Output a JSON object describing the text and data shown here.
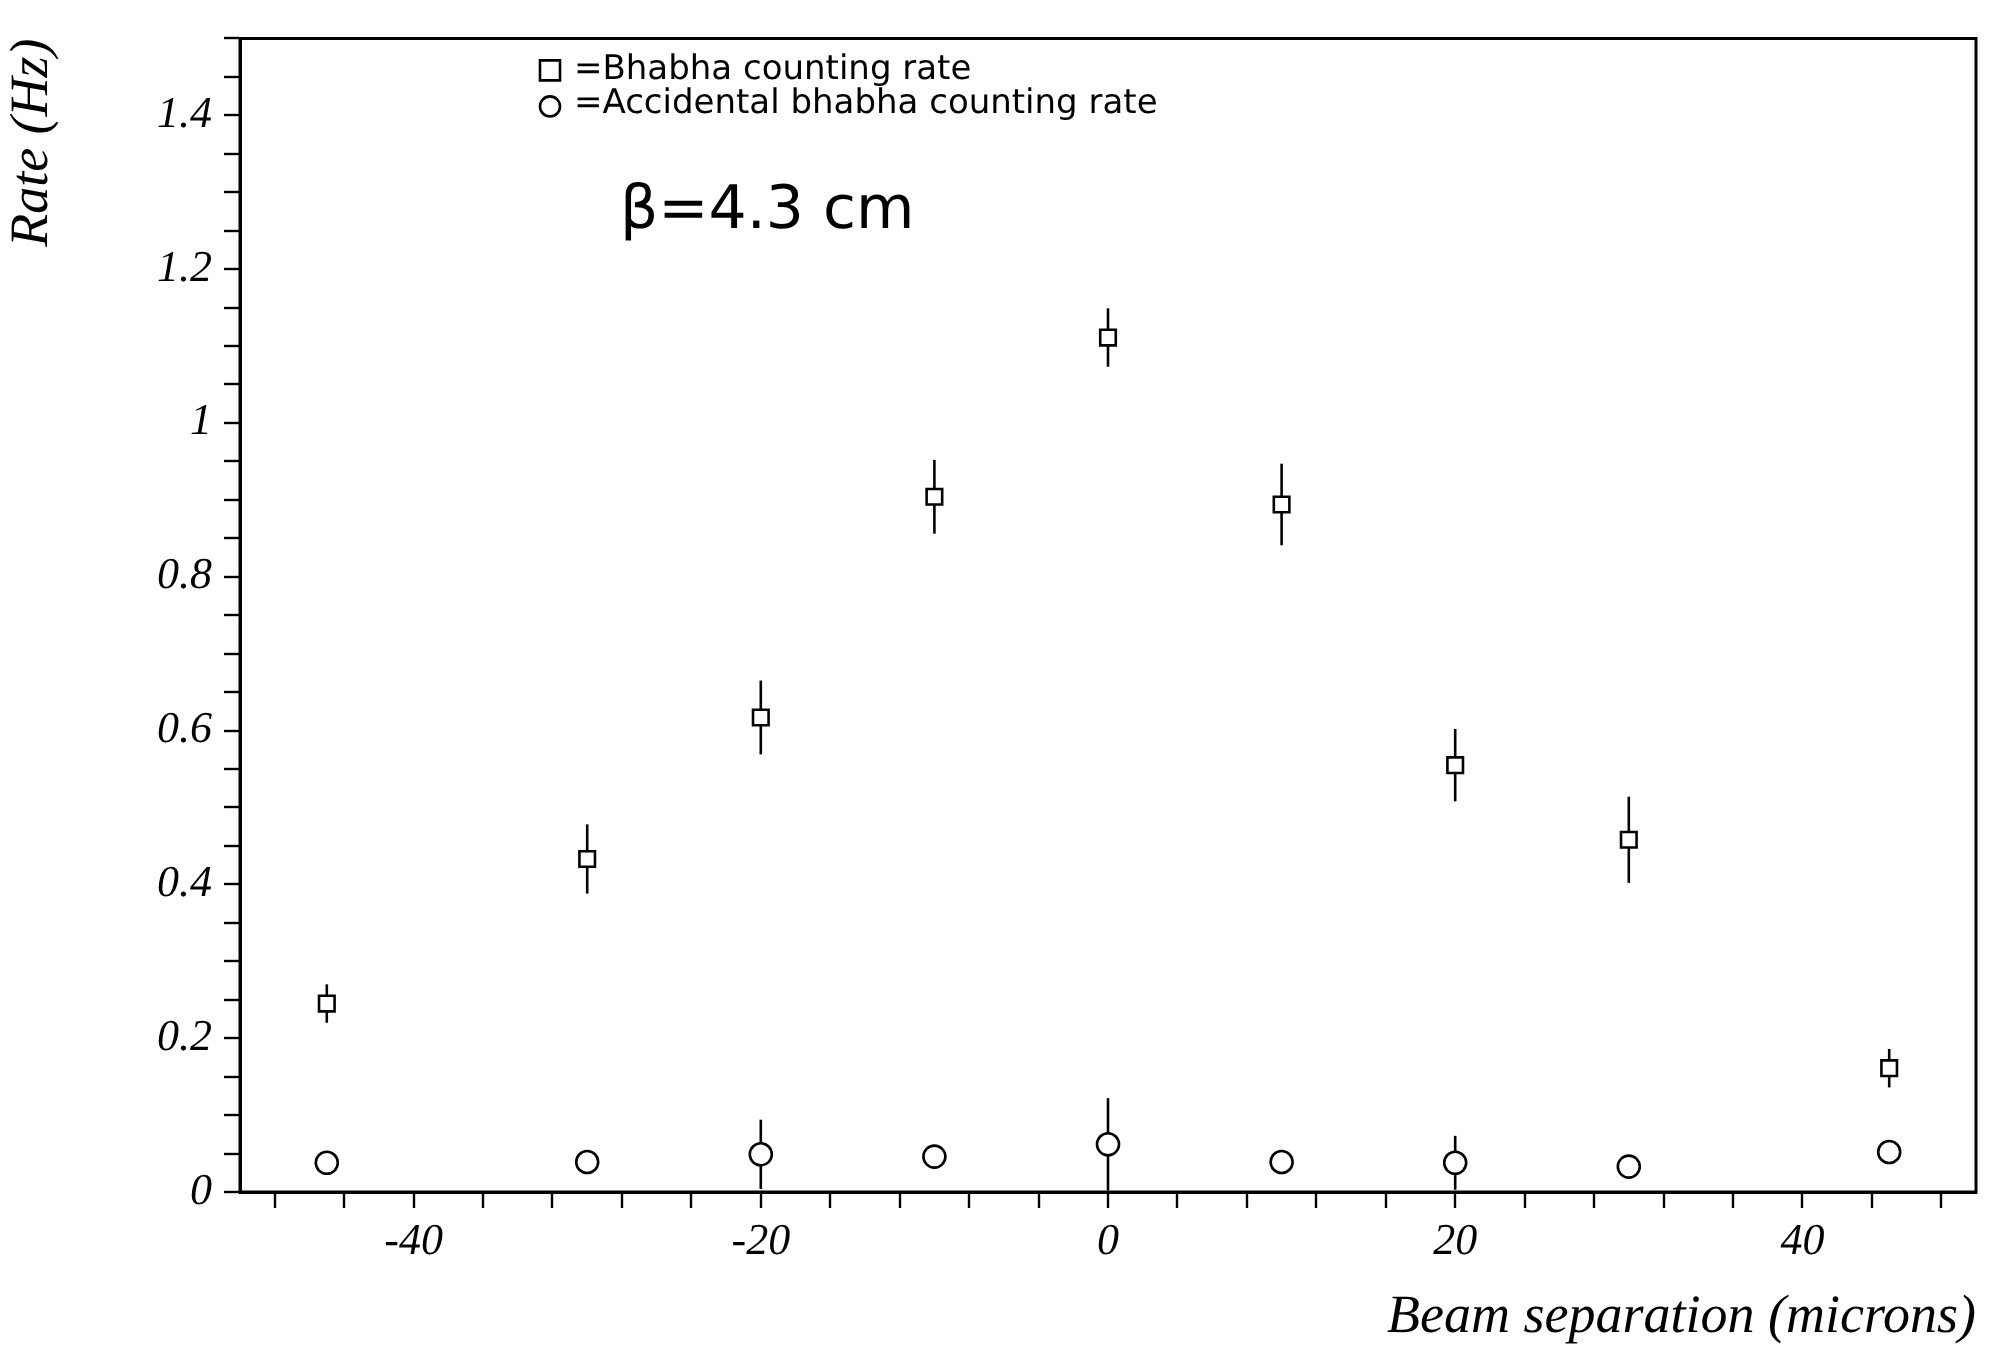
{
  "chart_data": {
    "type": "scatter",
    "xlabel": "Beam separation (microns)",
    "ylabel": "Rate (Hz)",
    "annotations": [
      "β=4.3 cm"
    ],
    "x": [
      -45,
      -30,
      -20,
      -10,
      0,
      10,
      20,
      30,
      45
    ],
    "series": [
      {
        "name": "=Bhabha counting rate",
        "color": "#000000",
        "marker": "square",
        "values": [
          0.245,
          0.433,
          0.617,
          0.904,
          1.111,
          0.894,
          0.555,
          0.458,
          0.161
        ],
        "errors": [
          0.025,
          0.045,
          0.048,
          0.048,
          0.038,
          0.053,
          0.047,
          0.056,
          0.025
        ]
      },
      {
        "name": "=Accidental bhabha counting rate",
        "color": "#000000",
        "marker": "circle",
        "values": [
          0.038,
          0.039,
          0.049,
          0.046,
          0.062,
          0.039,
          0.038,
          0.033,
          0.052
        ],
        "errors": [
          null,
          null,
          0.045,
          null,
          0.06,
          null,
          0.035,
          null,
          null
        ]
      }
    ],
    "xlim": [
      -50,
      50
    ],
    "xticks": [
      {
        "value": -48,
        "label": null
      },
      {
        "value": -44,
        "label": null
      },
      -40,
      {
        "value": -36,
        "label": null
      },
      {
        "value": -32,
        "label": null
      },
      {
        "value": -28,
        "label": null
      },
      {
        "value": -24,
        "label": null
      },
      -20,
      {
        "value": -16,
        "label": null
      },
      {
        "value": -12,
        "label": null
      },
      {
        "value": -8,
        "label": null
      },
      {
        "value": -4,
        "label": null
      },
      0,
      {
        "value": 4,
        "label": null
      },
      {
        "value": 8,
        "label": null
      },
      {
        "value": 12,
        "label": null
      },
      {
        "value": 16,
        "label": null
      },
      20,
      {
        "value": 24,
        "label": null
      },
      {
        "value": 28,
        "label": null
      },
      {
        "value": 32,
        "label": null
      },
      {
        "value": 36,
        "label": null
      },
      40,
      {
        "value": 44,
        "label": null
      },
      {
        "value": 48,
        "label": null
      }
    ],
    "ylim": [
      0,
      1.5
    ],
    "yticks": [
      0,
      {
        "value": 0.05,
        "label": null
      },
      {
        "value": 0.1,
        "label": null
      },
      {
        "value": 0.15,
        "label": null
      },
      0.2,
      {
        "value": 0.25,
        "label": null
      },
      {
        "value": 0.3,
        "label": null
      },
      {
        "value": 0.35,
        "label": null
      },
      0.4,
      {
        "value": 0.45,
        "label": null
      },
      {
        "value": 0.5,
        "label": null
      },
      {
        "value": 0.55,
        "label": null
      },
      0.6,
      {
        "value": 0.65,
        "label": null
      },
      {
        "value": 0.7,
        "label": null
      },
      {
        "value": 0.75,
        "label": null
      },
      0.8,
      {
        "value": 0.85,
        "label": null
      },
      {
        "value": 0.9,
        "label": null
      },
      {
        "value": 0.95,
        "label": null
      },
      1,
      {
        "value": 1.05,
        "label": null
      },
      {
        "value": 1.1,
        "label": null
      },
      {
        "value": 1.15,
        "label": null
      },
      1.2,
      {
        "value": 1.25,
        "label": null
      },
      {
        "value": 1.3,
        "label": null
      },
      {
        "value": 1.35,
        "label": null
      },
      1.4,
      {
        "value": 1.45,
        "label": null
      },
      {
        "value": 1.5,
        "label": null
      }
    ],
    "legend": "top"
  }
}
